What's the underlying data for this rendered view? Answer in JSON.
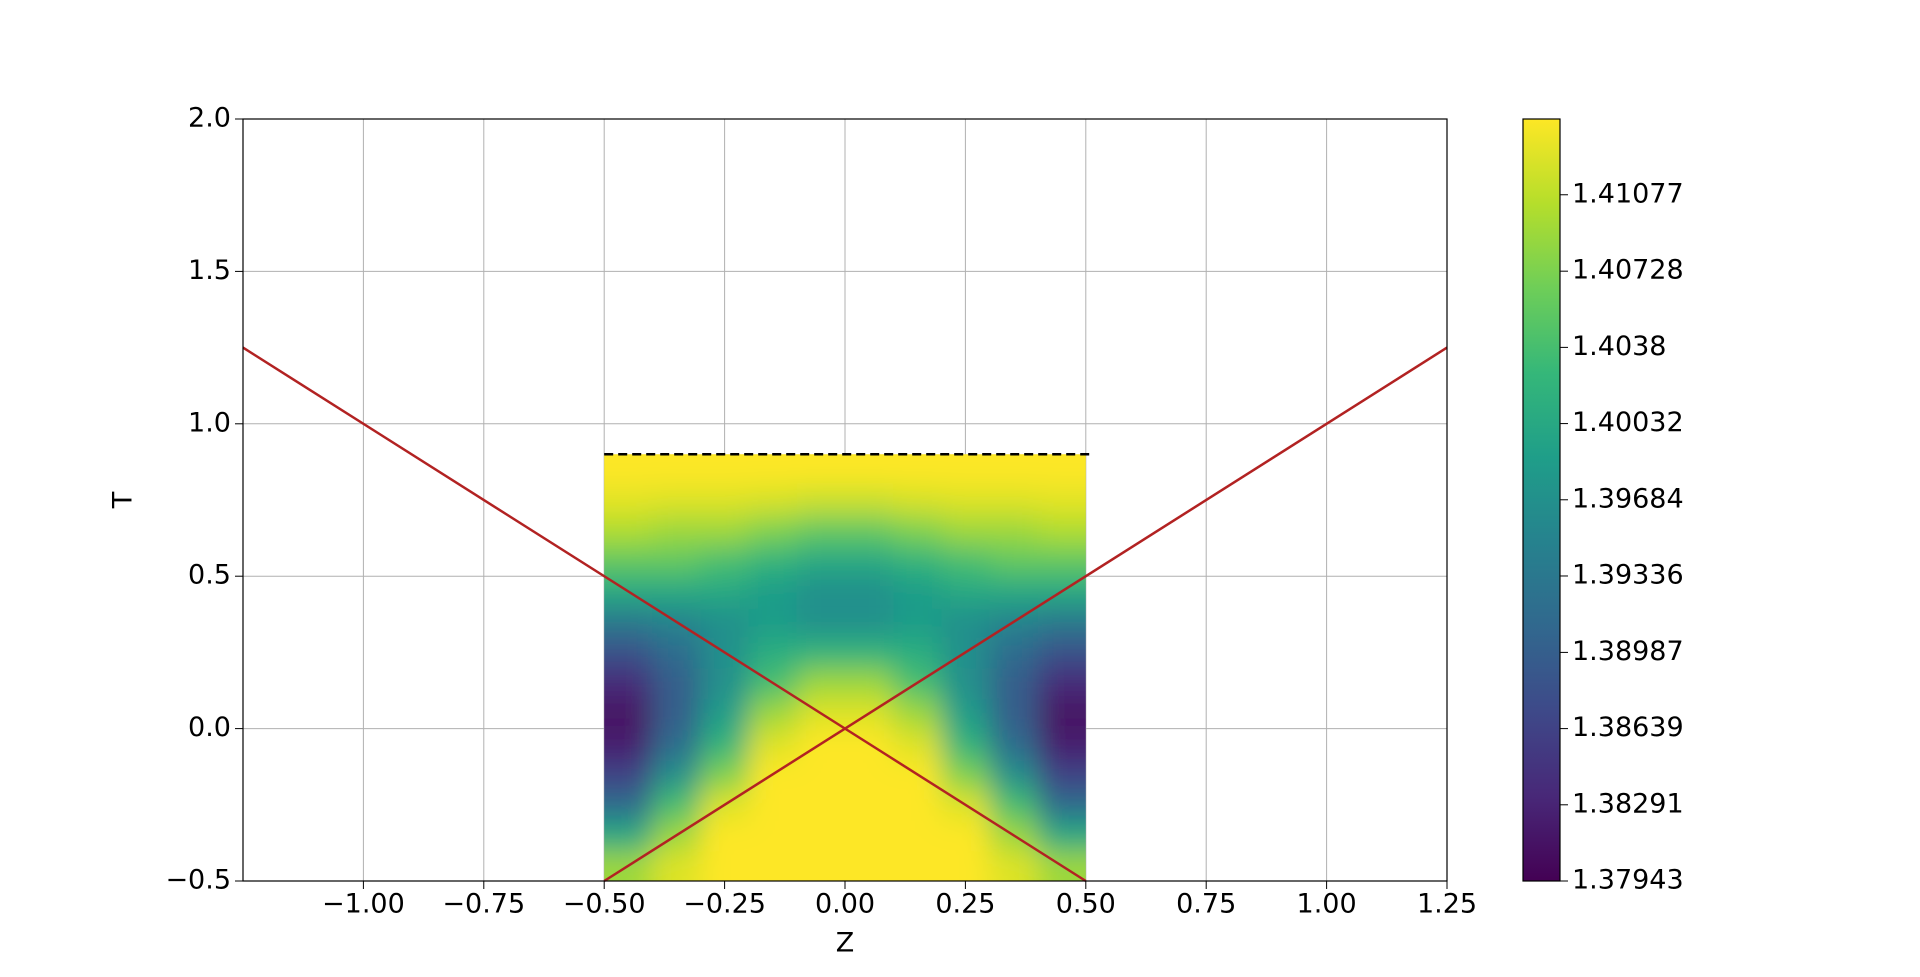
{
  "chart_data": {
    "type": "heatmap",
    "xlabel": "Z",
    "ylabel": "T",
    "colormap": "viridis",
    "xlim": [
      -1.25,
      1.25
    ],
    "ylim": [
      -0.5,
      2.0
    ],
    "xticks": [
      {
        "value": -1.0,
        "label": "−1.00"
      },
      {
        "value": -0.75,
        "label": "−0.75"
      },
      {
        "value": -0.5,
        "label": "−0.50"
      },
      {
        "value": -0.25,
        "label": "−0.25"
      },
      {
        "value": 0,
        "label": "0.00"
      },
      {
        "value": 0.25,
        "label": "0.25"
      },
      {
        "value": 0.5,
        "label": "0.50"
      },
      {
        "value": 0.75,
        "label": "0.75"
      },
      {
        "value": 1.0,
        "label": "1.00"
      },
      {
        "value": 1.25,
        "label": "1.25"
      }
    ],
    "yticks": [
      {
        "value": -0.5,
        "label": "−0.5"
      },
      {
        "value": 0,
        "label": "0.0"
      },
      {
        "value": 0.5,
        "label": "0.5"
      },
      {
        "value": 1.0,
        "label": "1.0"
      },
      {
        "value": 1.5,
        "label": "1.5"
      },
      {
        "value": 2.0,
        "label": "2.0"
      }
    ],
    "grid": true,
    "clim": [
      1.37943,
      1.41423
    ],
    "cticks": [
      1.37943,
      1.38291,
      1.38639,
      1.38987,
      1.39336,
      1.39684,
      1.40032,
      1.4038,
      1.40728,
      1.41077
    ],
    "x": [
      -0.45,
      -0.35,
      -0.25,
      -0.15,
      -0.05,
      0.05,
      0.15,
      0.25,
      0.35,
      0.45
    ],
    "y": [
      -0.45,
      -0.35,
      -0.25,
      -0.15,
      -0.05,
      0.05,
      0.15,
      0.25,
      0.35,
      0.45,
      0.55,
      0.65,
      0.75,
      0.85
    ],
    "z": [
      [
        1.40901,
        1.41249,
        1.41423,
        1.41423,
        1.41423,
        1.41423,
        1.41423,
        1.41423,
        1.41249,
        1.40901
      ],
      [
        1.40031,
        1.40901,
        1.41423,
        1.41423,
        1.41423,
        1.41423,
        1.41423,
        1.41423,
        1.40901,
        1.40031
      ],
      [
        1.39161,
        1.40379,
        1.41249,
        1.41423,
        1.41423,
        1.41423,
        1.41423,
        1.41249,
        1.40379,
        1.39161
      ],
      [
        1.38639,
        1.39683,
        1.40727,
        1.41423,
        1.41423,
        1.41423,
        1.41423,
        1.40727,
        1.39683,
        1.38639
      ],
      [
        1.38221,
        1.39161,
        1.40205,
        1.41249,
        1.41423,
        1.41423,
        1.41249,
        1.40205,
        1.39161,
        1.38221
      ],
      [
        1.38117,
        1.38987,
        1.39857,
        1.40901,
        1.41249,
        1.41249,
        1.40901,
        1.39857,
        1.38987,
        1.38117
      ],
      [
        1.38361,
        1.38987,
        1.39683,
        1.40379,
        1.40901,
        1.40901,
        1.40379,
        1.39683,
        1.38987,
        1.38361
      ],
      [
        1.38813,
        1.39161,
        1.39683,
        1.40101,
        1.40205,
        1.40205,
        1.40101,
        1.39683,
        1.39161,
        1.38813
      ],
      [
        1.39335,
        1.39509,
        1.39683,
        1.39857,
        1.39683,
        1.39683,
        1.39857,
        1.39683,
        1.39509,
        1.39335
      ],
      [
        1.40031,
        1.40031,
        1.40031,
        1.39857,
        1.39683,
        1.39683,
        1.39857,
        1.40031,
        1.40031,
        1.40031
      ],
      [
        1.40553,
        1.40553,
        1.40379,
        1.40205,
        1.40031,
        1.40031,
        1.40205,
        1.40379,
        1.40553,
        1.40553
      ],
      [
        1.41005,
        1.40901,
        1.40901,
        1.40727,
        1.40553,
        1.40553,
        1.40727,
        1.40901,
        1.40901,
        1.41005
      ],
      [
        1.41284,
        1.41249,
        1.41249,
        1.41215,
        1.41145,
        1.41145,
        1.41215,
        1.41249,
        1.41249,
        1.41284
      ],
      [
        1.41423,
        1.41423,
        1.41423,
        1.41423,
        1.41423,
        1.41423,
        1.41423,
        1.41423,
        1.41423,
        1.41423
      ]
    ],
    "lines": [
      {
        "x": [
          -1.25,
          0.5
        ],
        "values": [
          1.25,
          -0.5
        ],
        "color": "#b22222",
        "dashed": false
      },
      {
        "x": [
          -0.5,
          1.25
        ],
        "values": [
          -0.5,
          1.25
        ],
        "color": "#b22222",
        "dashed": false
      },
      {
        "x": [
          -0.5,
          0.51
        ],
        "values": [
          0.9,
          0.9
        ],
        "color": "#000000",
        "dashed": true
      }
    ]
  }
}
